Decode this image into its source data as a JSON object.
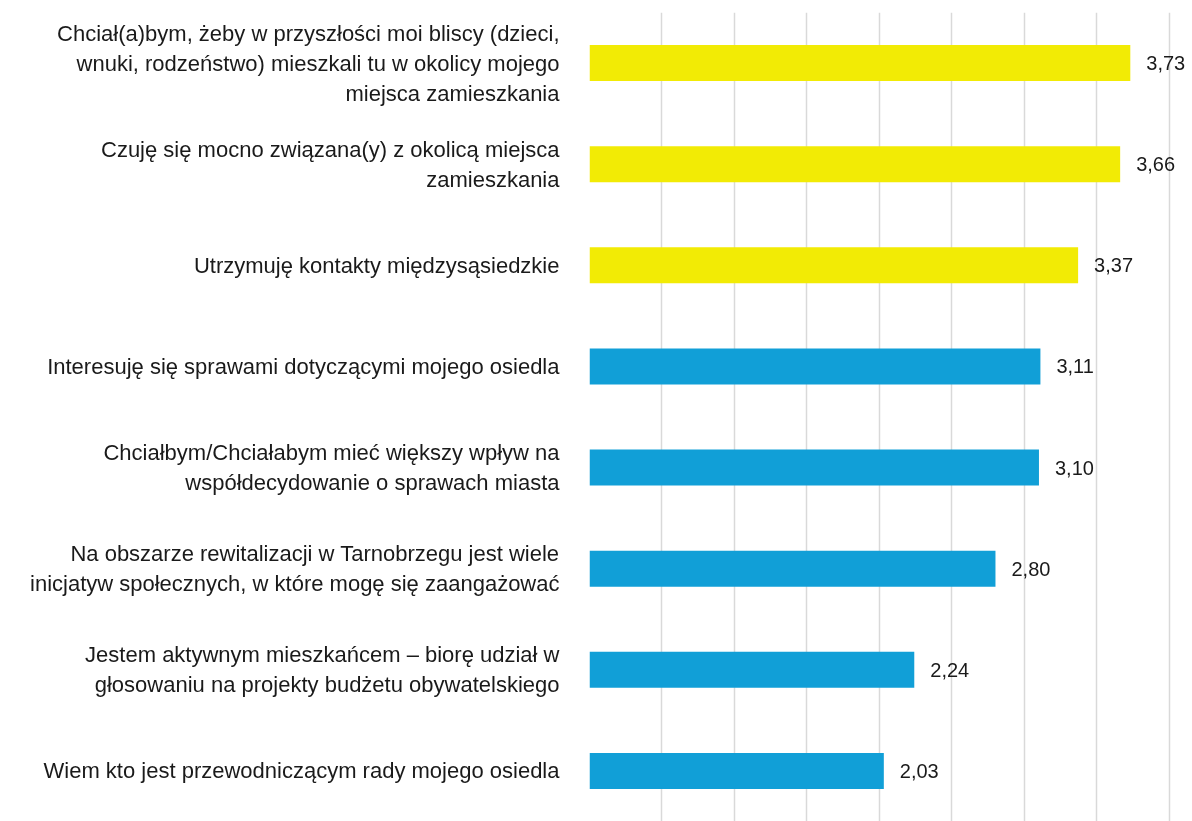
{
  "chart_data": {
    "type": "bar",
    "orientation": "horizontal",
    "categories": [
      "Chciał(a)bym, żeby w przyszłości moi bliscy (dzieci, wnuki, rodzeństwo) mieszkali tu w okolicy mojego miejsca zamieszkania",
      "Czuję się mocno związana(y) z okolicą miejsca zamieszkania",
      "Utrzymuję kontakty międzysąsiedzkie",
      "Interesuję się sprawami dotyczącymi mojego osiedla",
      "Chciałbym/Chciałabym mieć większy wpływ na współdecydowanie o sprawach miasta",
      "Na obszarze rewitalizacji w Tarnobrzegu jest wiele inicjatyw społecznych, w które mogę się zaangażować",
      "Jestem aktywnym mieszkańcem – biorę udział w głosowaniu na projekty budżetu obywatelskiego",
      "Wiem kto jest przewodniczącym rady mojego osiedla"
    ],
    "values": [
      3.73,
      3.66,
      3.37,
      3.11,
      3.1,
      2.8,
      2.24,
      2.03
    ],
    "value_labels": [
      "3,73",
      "3,66",
      "3,37",
      "3,11",
      "3,10",
      "2,80",
      "2,24",
      "2,03"
    ],
    "colors": [
      "#f2eb05",
      "#f2eb05",
      "#f2eb05",
      "#119fd7",
      "#119fd7",
      "#119fd7",
      "#119fd7",
      "#119fd7"
    ],
    "grid": "x",
    "tick_labels": "y"
  }
}
